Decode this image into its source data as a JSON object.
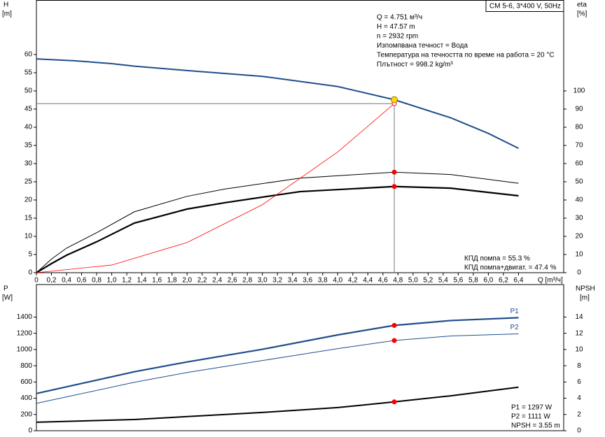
{
  "chart_data": [
    {
      "type": "line",
      "y_label": "H",
      "y_unit": "[m]",
      "y2_label": "eta",
      "y2_unit": "[%]",
      "x_label": "Q [m³/ч]",
      "box_label": "CM 5-6, 3*400 V, 50Hz",
      "annotations": [
        "Q = 4.751 м³/ч",
        "H = 47.57 m",
        "n = 2932 rpm",
        "Изпомпвана течност = Вода",
        "Температура на течността по време на работа = 20 °C",
        "Плътност = 998.2 kg/m³"
      ],
      "notes": [
        "КПД помпа = 55.3 %",
        "КПД помпа+двигат. = 47.4 %"
      ],
      "operating_q": 4.751,
      "xlim": [
        0,
        7
      ],
      "xticks": [
        0,
        {
          "value": 0.2,
          "label": "0,2"
        },
        {
          "value": 0.4,
          "label": "0,4"
        },
        {
          "value": 0.6,
          "label": "0,6"
        },
        {
          "value": 0.8,
          "label": "0,8"
        },
        {
          "value": 1,
          "label": "1,0"
        },
        {
          "value": 1.2,
          "label": "1,2"
        },
        {
          "value": 1.4,
          "label": "1,4"
        },
        {
          "value": 1.6,
          "label": "1,6"
        },
        {
          "value": 1.8,
          "label": "1,8"
        },
        {
          "value": 2,
          "label": "2,0"
        },
        {
          "value": 2.2,
          "label": "2,2"
        },
        {
          "value": 2.4,
          "label": "2,4"
        },
        {
          "value": 2.6,
          "label": "2,6"
        },
        {
          "value": 2.8,
          "label": "2,8"
        },
        {
          "value": 3,
          "label": "3,0"
        },
        {
          "value": 3.2,
          "label": "3,2"
        },
        {
          "value": 3.4,
          "label": "3,4"
        },
        {
          "value": 3.6,
          "label": "3,6"
        },
        {
          "value": 3.8,
          "label": "3,8"
        },
        {
          "value": 4,
          "label": "4,0"
        },
        {
          "value": 4.2,
          "label": "4,2"
        },
        {
          "value": 4.4,
          "label": "4,4"
        },
        {
          "value": 4.6,
          "label": "4,6"
        },
        {
          "value": 4.8,
          "label": "4,8"
        },
        {
          "value": 5,
          "label": "5,0"
        },
        {
          "value": 5.2,
          "label": "5,2"
        },
        {
          "value": 5.4,
          "label": "5,4"
        },
        {
          "value": 5.6,
          "label": "5,6"
        },
        {
          "value": 5.8,
          "label": "5,8"
        },
        {
          "value": 6,
          "label": "6,0"
        },
        {
          "value": 6.2,
          "label": "6,2"
        },
        {
          "value": 6.4,
          "label": "6,4"
        }
      ],
      "ylim": [
        0,
        75
      ],
      "yticks": [
        0,
        5,
        10,
        15,
        20,
        25,
        30,
        35,
        40,
        45,
        50,
        55,
        60
      ],
      "y2lim": [
        0,
        150
      ],
      "y2ticks": [
        0,
        10,
        20,
        30,
        40,
        50,
        60,
        70,
        80,
        90,
        100
      ],
      "series": [
        {
          "color": "#1f4e8c",
          "width": 2,
          "marker_color": "#ffd700",
          "x": [
            0,
            0.5,
            1,
            1.3,
            2,
            3,
            4,
            4.751,
            5.5,
            6,
            6.4
          ],
          "values": [
            58.8,
            58.3,
            57.5,
            56.8,
            55.6,
            54.0,
            51.2,
            47.57,
            42.6,
            38.3,
            34.2
          ]
        },
        {
          "color": "#000000",
          "width": 1,
          "axis": "y2",
          "marker_color": "#ff0000",
          "x": [
            0,
            0.2,
            0.4,
            0.8,
            1.3,
            2,
            2.5,
            3.5,
            4.751,
            5.5,
            6.4
          ],
          "values": [
            0,
            7.5,
            13.5,
            22,
            33.5,
            42,
            46,
            52,
            55.3,
            54,
            49.2
          ]
        },
        {
          "color": "#000000",
          "width": 2.2,
          "axis": "y2",
          "marker_color": "#ff0000",
          "x": [
            0,
            0.2,
            0.4,
            0.8,
            1.3,
            2,
            2.5,
            3.5,
            4.751,
            5.5,
            6.4
          ],
          "values": [
            0,
            5,
            9.6,
            17,
            27.3,
            35,
            38.5,
            44.6,
            47.4,
            46.5,
            42.3
          ]
        },
        {
          "color": "#ff0000",
          "width": 0.8,
          "crosshair": true,
          "x": [
            0,
            1,
            2,
            3,
            4,
            4.751
          ],
          "values": [
            0,
            2.1,
            8.3,
            18.7,
            33.2,
            46.5
          ]
        }
      ]
    },
    {
      "type": "line",
      "y_label": "P",
      "y_unit": "[W]",
      "y2_label": "NPSH",
      "y2_unit": "[m]",
      "notes": [
        "P1 = 1297 W",
        "P2 = 1111 W",
        "NPSH = 3.55 m"
      ],
      "operating_q": 4.751,
      "xlim": [
        0,
        7
      ],
      "ylim": [
        0,
        1800
      ],
      "yticks": [
        0,
        200,
        400,
        600,
        800,
        1000,
        1200,
        1400
      ],
      "y2lim": [
        0,
        18
      ],
      "y2ticks": [
        0,
        2,
        4,
        6,
        8,
        10,
        12,
        14
      ],
      "series": [
        {
          "name": "P1",
          "color": "#1f4e8c",
          "width": 2.2,
          "marker_color": "#ff0000",
          "x": [
            0,
            1.3,
            2,
            3,
            4,
            4.751,
            5.5,
            6.4
          ],
          "values": [
            458,
            726,
            847,
            1003,
            1180,
            1297,
            1357,
            1392
          ]
        },
        {
          "name": "P2",
          "color": "#1f4e8c",
          "width": 1,
          "marker_color": "#ff0000",
          "x": [
            0,
            1.3,
            2,
            3,
            4,
            4.751,
            5.5,
            6.4
          ],
          "values": [
            337,
            596,
            717,
            864,
            1011,
            1111,
            1167,
            1193
          ]
        },
        {
          "color": "#000000",
          "width": 2,
          "axis": "y2",
          "marker_color": "#ff0000",
          "x": [
            0,
            1.3,
            3,
            4,
            4.751,
            5.5,
            6.4
          ],
          "values": [
            1.04,
            1.38,
            2.25,
            2.85,
            3.55,
            4.3,
            5.36
          ]
        }
      ]
    }
  ]
}
